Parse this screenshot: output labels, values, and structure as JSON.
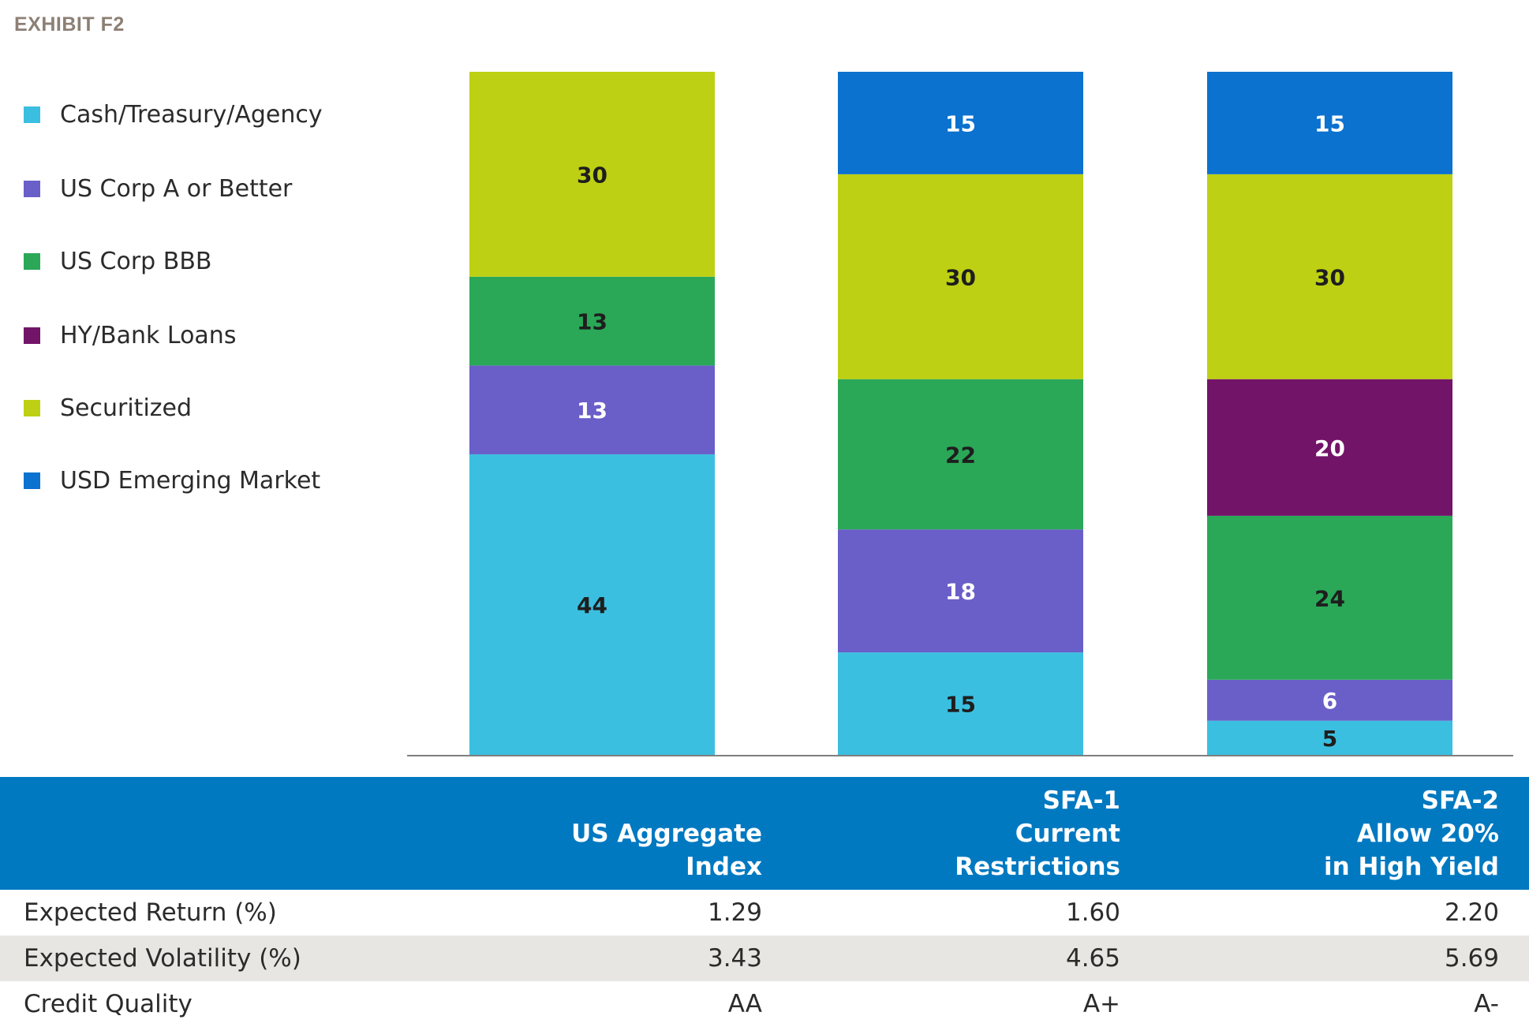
{
  "exhibit": "EXHIBIT F2",
  "legend": [
    {
      "label": "Cash/Treasury/Agency",
      "color": "#3bbfe0"
    },
    {
      "label": "US Corp A or Better",
      "color": "#6a5ec9"
    },
    {
      "label": "US Corp BBB",
      "color": "#2aa857"
    },
    {
      "label": "HY/Bank Loans",
      "color": "#721468"
    },
    {
      "label": "Securitized",
      "color": "#bdd013"
    },
    {
      "label": "USD Emerging Market",
      "color": "#0b72cf"
    }
  ],
  "chart_data": {
    "type": "bar",
    "stacked": true,
    "categories": [
      "US Aggregate Index",
      "SFA-1 Current Restrictions",
      "SFA-2 Allow 20% in High Yield"
    ],
    "series": [
      {
        "name": "Cash/Treasury/Agency",
        "color": "#3bbfe0",
        "values": [
          44,
          15,
          5
        ]
      },
      {
        "name": "US Corp A or Better",
        "color": "#6a5ec9",
        "values": [
          13,
          18,
          6
        ]
      },
      {
        "name": "US Corp BBB",
        "color": "#2aa857",
        "values": [
          13,
          22,
          24
        ]
      },
      {
        "name": "HY/Bank Loans",
        "color": "#721468",
        "values": [
          0,
          0,
          20
        ]
      },
      {
        "name": "Securitized",
        "color": "#bdd013",
        "values": [
          30,
          30,
          30
        ]
      },
      {
        "name": "USD Emerging Market",
        "color": "#0b72cf",
        "values": [
          0,
          15,
          15
        ]
      }
    ],
    "legend_position": "left",
    "grid": false
  },
  "table": {
    "headers": [
      [
        "",
        "US Aggregate",
        "Index"
      ],
      [
        "SFA-1",
        "Current",
        "Restrictions"
      ],
      [
        "SFA-2",
        "Allow 20%",
        "in High Yield"
      ]
    ],
    "rows": [
      {
        "label": "Expected Return (%)",
        "values": [
          "1.29",
          "1.60",
          "2.20"
        ]
      },
      {
        "label": "Expected Volatility (%)",
        "values": [
          "3.43",
          "4.65",
          "5.69"
        ]
      },
      {
        "label": "Credit Quality",
        "values": [
          "AA",
          "A+",
          "A-"
        ]
      }
    ]
  }
}
